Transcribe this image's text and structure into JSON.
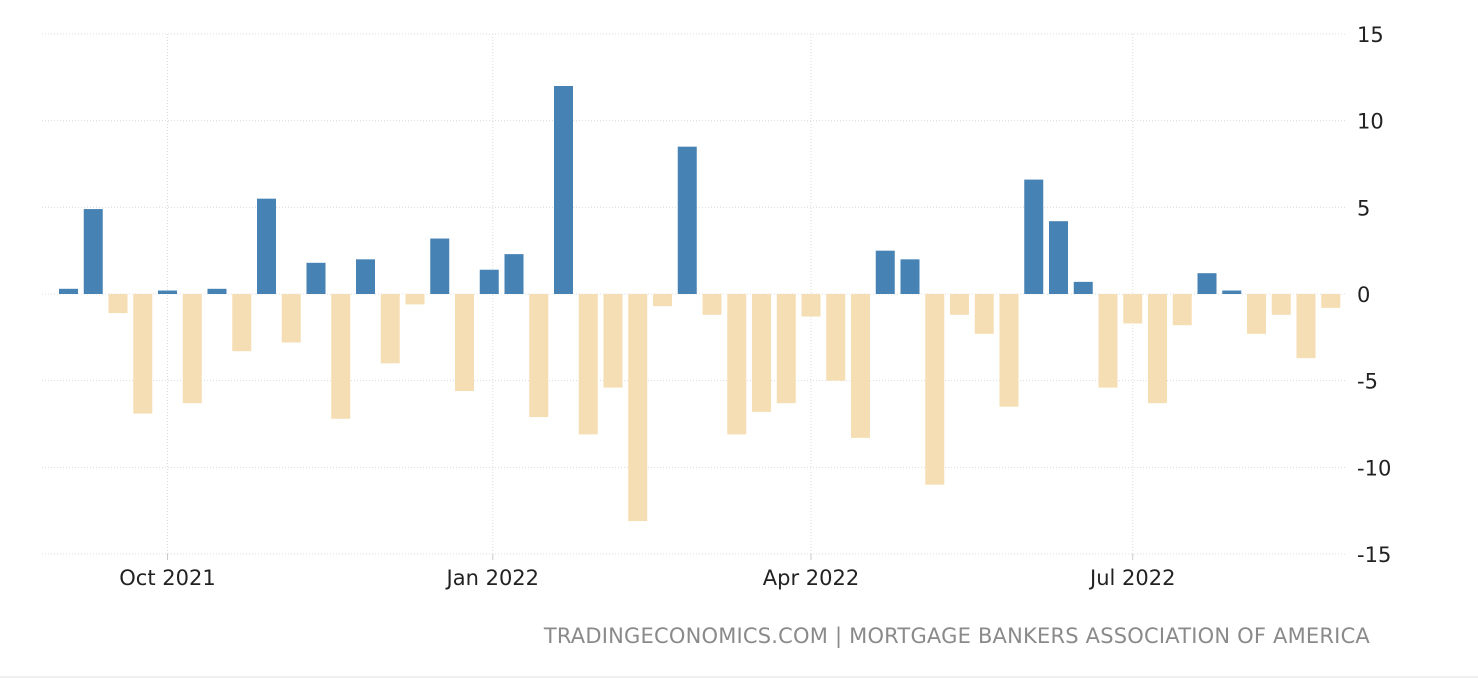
{
  "source_text": "TRADINGECONOMICS.COM | MORTGAGE BANKERS ASSOCIATION OF AMERICA",
  "chart_data": {
    "type": "bar",
    "ylim": [
      -15,
      15
    ],
    "yticks": [
      15,
      10,
      5,
      0,
      -5,
      -10,
      -15
    ],
    "ytick_labels": [
      "15",
      "10",
      "5",
      "0",
      "-5",
      "-10",
      "-15"
    ],
    "x_start": "2021-09-03",
    "x_step_days": 7,
    "xticks": [
      {
        "date": "2021-10-01",
        "label": "Oct 2021"
      },
      {
        "date": "2022-01-01",
        "label": "Jan 2022"
      },
      {
        "date": "2022-04-01",
        "label": "Apr 2022"
      },
      {
        "date": "2022-07-01",
        "label": "Jul 2022"
      }
    ],
    "grid": true,
    "colors": {
      "positive": "#4682b4",
      "negative": "#f5deb3",
      "grid": "#dcdcdc",
      "text": "#222222"
    },
    "values": [
      0.3,
      4.9,
      -1.1,
      -6.9,
      0.2,
      -6.3,
      0.3,
      -3.3,
      5.5,
      -2.8,
      1.8,
      -7.2,
      2.0,
      -4.0,
      -0.6,
      3.2,
      -5.6,
      1.4,
      2.3,
      -7.1,
      12.0,
      -8.1,
      -5.4,
      -13.1,
      -0.7,
      8.5,
      -1.2,
      -8.1,
      -6.8,
      -6.3,
      -1.3,
      -5.0,
      -8.3,
      2.5,
      2.0,
      -11.0,
      -1.2,
      -2.3,
      -6.5,
      6.6,
      4.2,
      0.7,
      -5.4,
      -1.7,
      -6.3,
      -1.8,
      1.2,
      0.2,
      -2.3,
      -1.2,
      -3.7,
      -0.8
    ]
  }
}
